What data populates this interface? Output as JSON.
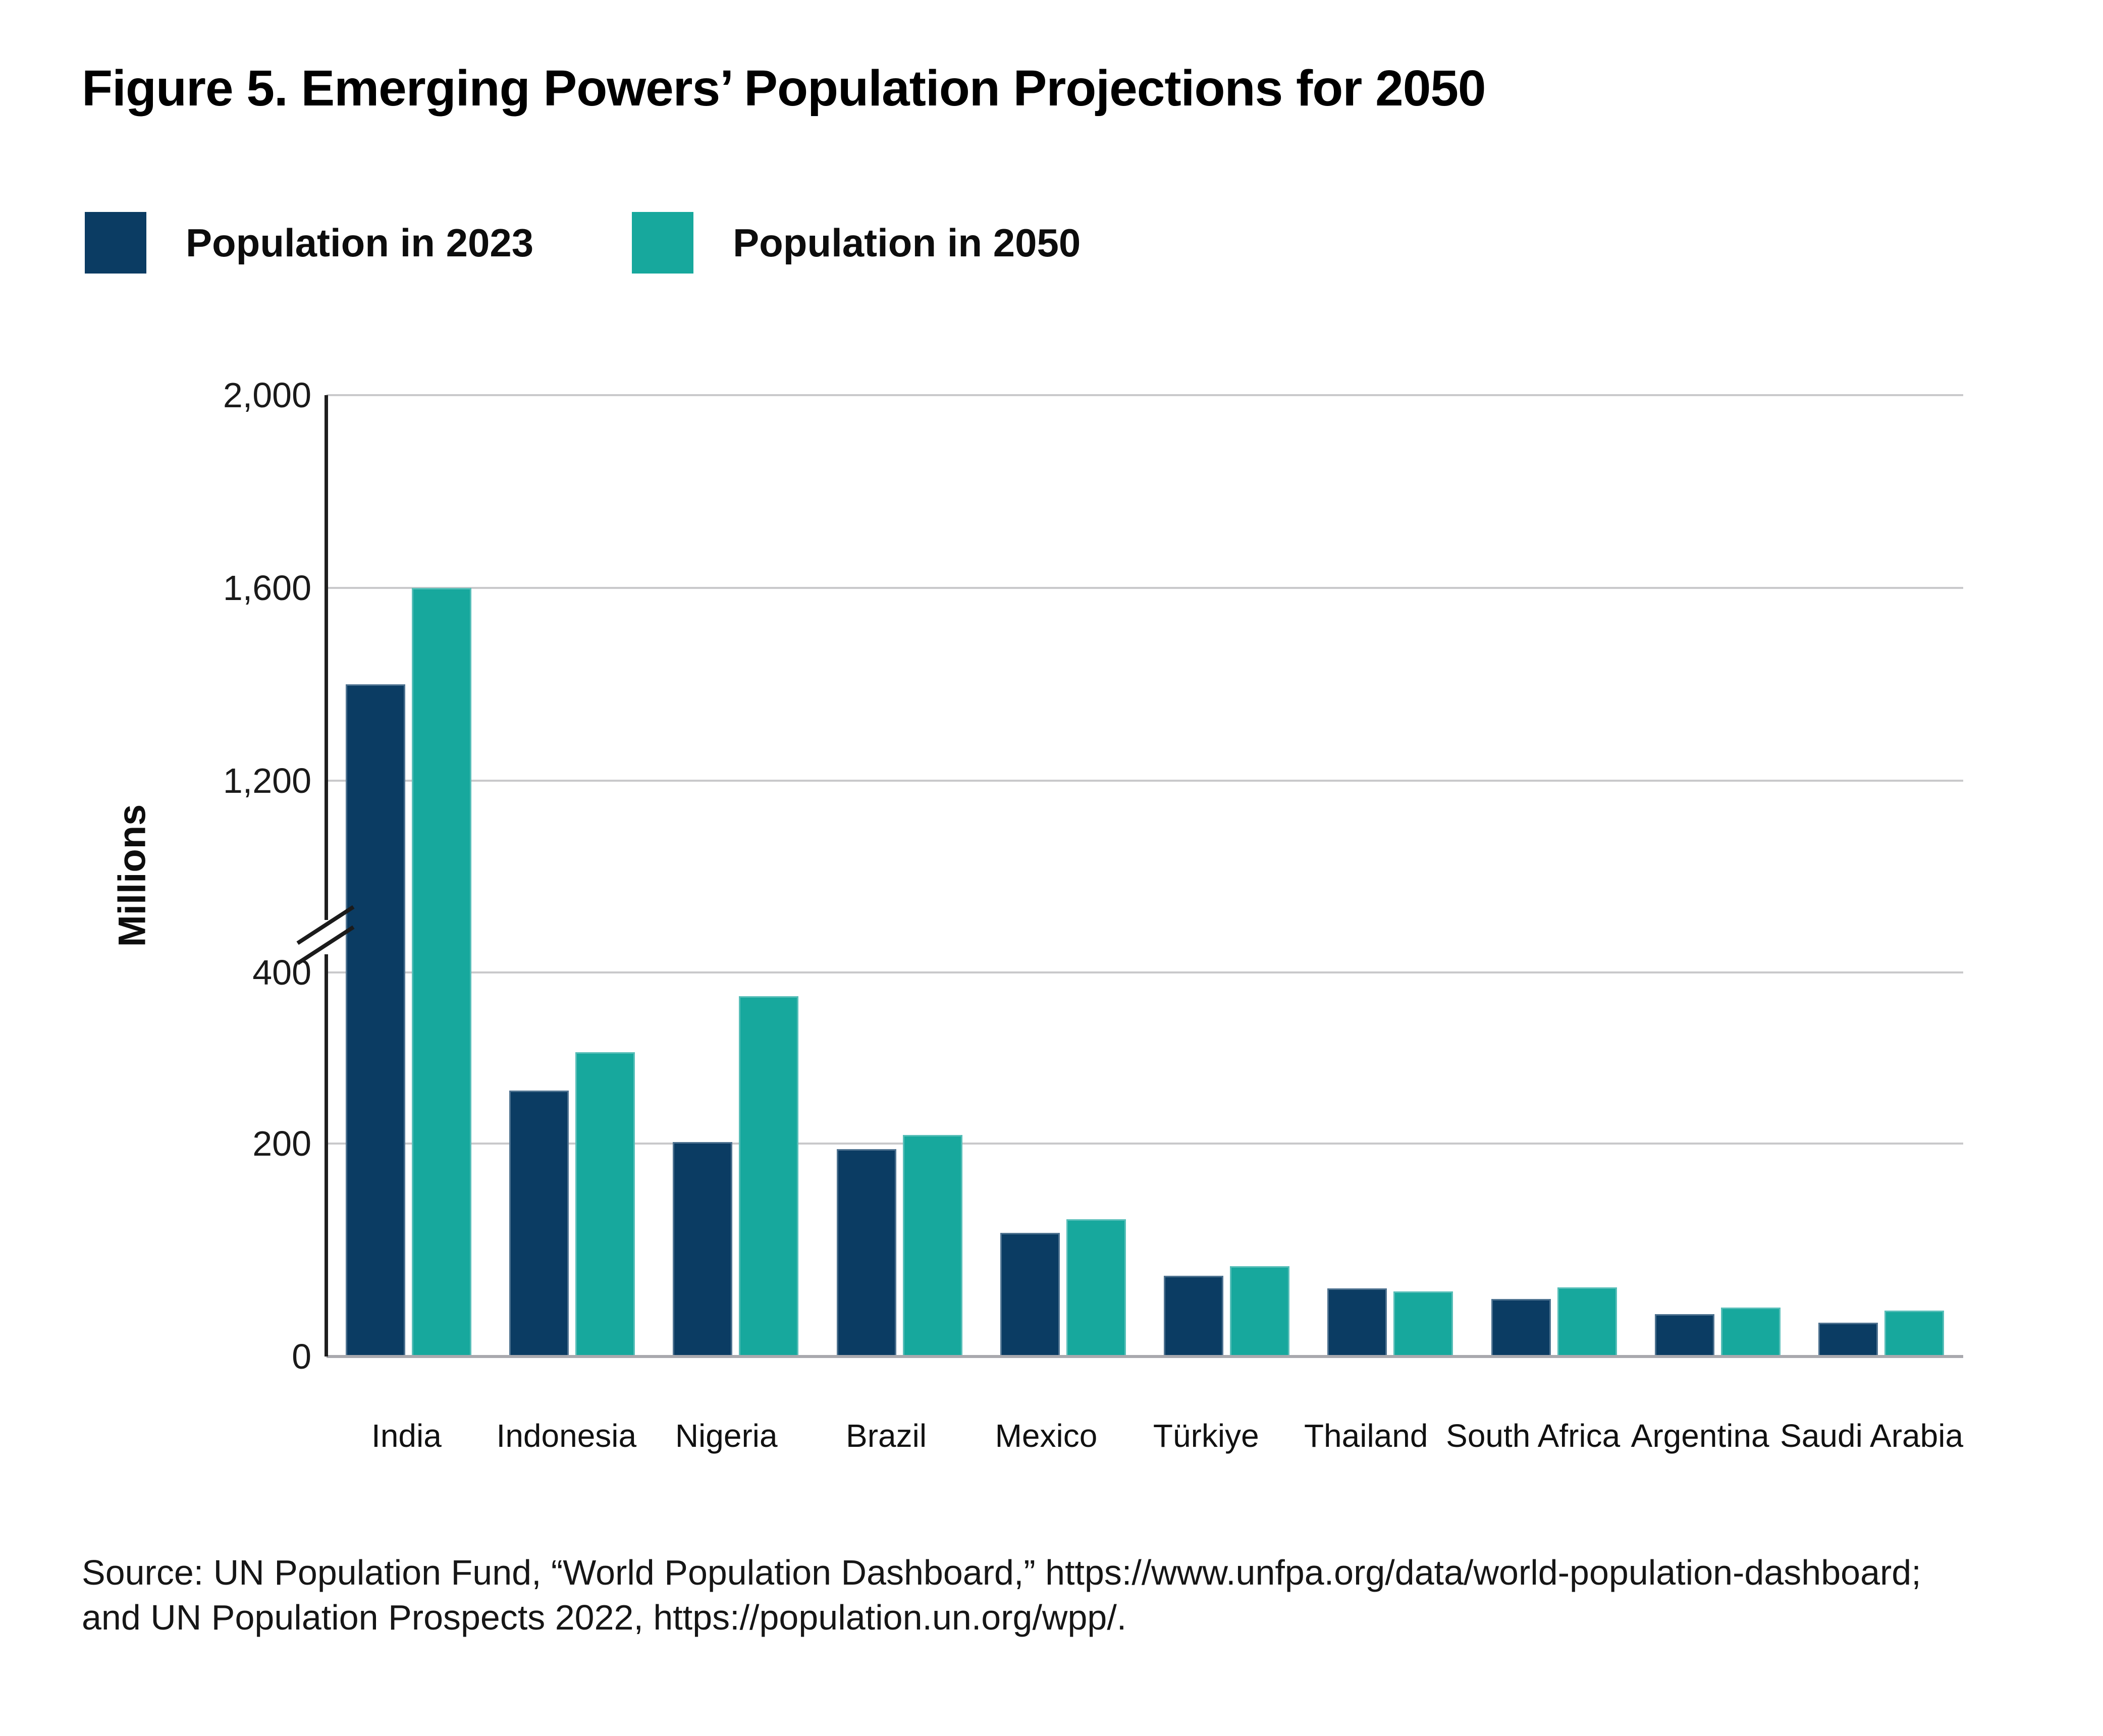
{
  "title": "Figure 5. Emerging Powers’ Population Projections for 2050",
  "legend": {
    "items": [
      {
        "label": "Population in 2023",
        "color": "#0B3C63"
      },
      {
        "label": "Population in 2050",
        "color": "#17A89D"
      }
    ]
  },
  "chart_data": {
    "type": "bar",
    "title": "Figure 5. Emerging Powers’ Population Projections for 2050",
    "xlabel": "",
    "ylabel": "Millions",
    "grid": true,
    "legend_position": "top-left",
    "categories": [
      "India",
      "Indonesia",
      "Nigeria",
      "Brazil",
      "Mexico",
      "Türkiye",
      "Thailand",
      "South Africa",
      "Argentina",
      "Saudi Arabia"
    ],
    "series": [
      {
        "name": "Population in 2023",
        "color": "#0B3C63",
        "values": [
          1400,
          262,
          202,
          195,
          116,
          76,
          64,
          54,
          40,
          32
        ]
      },
      {
        "name": "Population in 2050",
        "color": "#17A89D",
        "values": [
          1600,
          307,
          372,
          210,
          129,
          85,
          61,
          65,
          46,
          43
        ]
      }
    ],
    "y_ticks": [
      0,
      200,
      400,
      1200,
      1600,
      2000
    ],
    "y_tick_labels": [
      "0",
      "200",
      "400",
      "1,200",
      "1,600",
      "2,000"
    ],
    "ylim": [
      0,
      2000
    ],
    "axis_break": {
      "between": [
        400,
        1200
      ]
    },
    "y_scale_anchors": [
      [
        0,
        0
      ],
      [
        200,
        0.2215
      ],
      [
        400,
        0.3995
      ],
      [
        1200,
        0.599
      ],
      [
        1600,
        0.7995
      ],
      [
        2000,
        1.0
      ]
    ]
  },
  "source": {
    "line1": "Source: UN Population Fund, “World Population Dashboard,” https://www.unfpa.org/data/world-population-dashboard;",
    "line2": "and UN Population Prospects 2022,  https://population.un.org/wpp/."
  },
  "colors": {
    "gridline": "#c9c9cb",
    "base_axis": "#a9a9ae",
    "y_axis": "#1e1e1e",
    "text": "#0d0d0d"
  }
}
